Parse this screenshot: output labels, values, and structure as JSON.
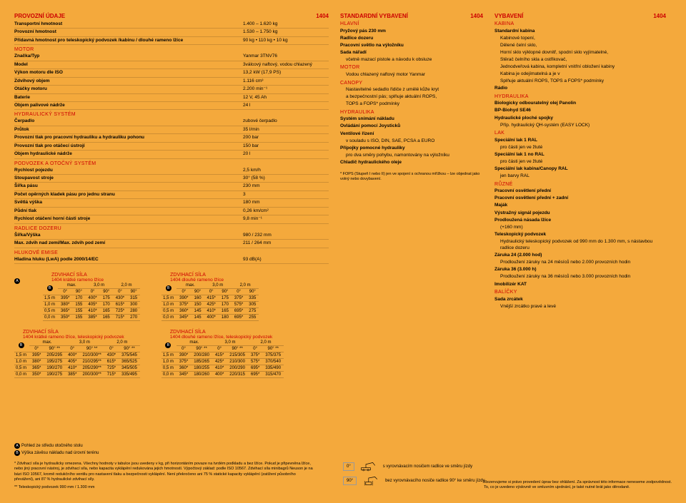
{
  "col1": {
    "header": {
      "title": "PROVOZNÍ ÚDAJE",
      "num": "1404"
    },
    "groups": [
      {
        "rows": [
          {
            "k": "Transportní hmotnost",
            "v": "1.400 – 1.620 kg",
            "b": 1
          },
          {
            "k": "Provozní hmotnost",
            "v": "1.530 – 1.750 kg",
            "b": 1
          },
          {
            "k": "Přídavná hmotnost pro teleskopický podvozek /kabinu / dlouhé rameno lžíce",
            "v": "90 kg • 110 kg • 10 kg",
            "b": 1
          }
        ]
      },
      {
        "sub": "MOTOR",
        "rows": [
          {
            "k": "Značka/Typ",
            "v": "Yanmar 3TNV76",
            "b": 1
          },
          {
            "k": "Model",
            "v": "3válcový naftový, vodou chlazený",
            "b": 1
          },
          {
            "k": "Výkon motoru dle ISO",
            "v": "13,2 kW (17,9 PS)",
            "b": 1
          },
          {
            "k": "Zdvihový objem",
            "v": "1.116 cm³",
            "b": 1
          },
          {
            "k": "Otáčky motoru",
            "v": "2.200 min⁻¹",
            "b": 1
          },
          {
            "k": "Baterie",
            "v": "12 V, 45 Ah",
            "b": 1
          },
          {
            "k": "Objem palivové nádrže",
            "v": "24 l",
            "b": 1
          }
        ]
      },
      {
        "sub": "HYDRAULICKÝ SYSTÉM",
        "rows": [
          {
            "k": "Čerpadlo",
            "v": "zubové čerpadlo",
            "b": 1
          },
          {
            "k": "Průtok",
            "v": "35 l/min",
            "b": 1
          },
          {
            "k": "Provozní tlak pro pracovní hydrauliku a hydrauliku pohonu",
            "v": "200 bar",
            "b": 1
          },
          {
            "k": "Provozní tlak pro otáčecí ústrojí",
            "v": "150 bar",
            "b": 1
          },
          {
            "k": "Objem hydraulické nádrže",
            "v": "20 l",
            "b": 1
          }
        ]
      },
      {
        "sub": "PODVOZEK A OTOČNÝ SYSTÉM",
        "rows": [
          {
            "k": "Rychlost pojezdu",
            "v": "2,5 km/h",
            "b": 1
          },
          {
            "k": "Stoupavost stroje",
            "v": "30° (58 %)",
            "b": 1
          },
          {
            "k": "Šířka pásu",
            "v": "230 mm",
            "b": 1
          },
          {
            "k": "Počet opěrných kladek pásu pro jednu stranu",
            "v": "3",
            "b": 1
          },
          {
            "k": "Světlá výška",
            "v": "180 mm",
            "b": 1
          },
          {
            "k": "Půdní tlak",
            "v": "0,26 km/cm²",
            "b": 1
          },
          {
            "k": "Rychlost otáčení horní části stroje",
            "v": "9,8 min⁻¹",
            "b": 1
          }
        ]
      },
      {
        "sub": "RADLICE DOZERU",
        "rows": [
          {
            "k": "Šířka/Výška",
            "v": "980 / 232 mm",
            "b": 1
          },
          {
            "k": "Max. zdvih nad zemí/Max. zdvih pod zemí",
            "v": "211 / 264 mm",
            "b": 1
          }
        ]
      },
      {
        "sub": "HLUKOVÉ EMISE",
        "rows": [
          {
            "k": "Hladina hluku (LwA) podle 2000/14/EC",
            "v": "93 dB(A)",
            "b": 1
          }
        ]
      }
    ],
    "tables": [
      {
        "title": "ZDVIHACÍ SÍLA",
        "sub": "1404 krátké rameno lžíce",
        "head": [
          "",
          "max.",
          "",
          "3,0 m",
          "",
          "2,0 m",
          ""
        ],
        "head2": [
          "",
          "0°",
          "90°",
          "0°",
          "90°",
          "0°",
          "90°"
        ],
        "rows": [
          [
            "1,5 m",
            "395*",
            "170",
            "400*",
            "175",
            "430*",
            "315"
          ],
          [
            "1,0 m",
            "380*",
            "155",
            "405*",
            "170",
            "615*",
            "300"
          ],
          [
            "0,5 m",
            "365*",
            "155",
            "410*",
            "165",
            "725*",
            "280"
          ],
          [
            "0,0 m",
            "350*",
            "155",
            "385*",
            "165",
            "715*",
            "270"
          ]
        ]
      },
      {
        "title": "ZDVIHACÍ SÍLA",
        "sub": "1404 dlouhé rameno lžíce",
        "head": [
          "",
          "max.",
          "",
          "3,0 m",
          "",
          "2,0 m",
          ""
        ],
        "head2": [
          "",
          "0°",
          "90°",
          "0°",
          "90°",
          "0°",
          "90°"
        ],
        "rows": [
          [
            "1,5 m",
            "390*",
            "160",
            "415*",
            "175",
            "375*",
            "335"
          ],
          [
            "1,0 m",
            "375*",
            "150",
            "425*",
            "170",
            "575*",
            "305"
          ],
          [
            "0,5 m",
            "360*",
            "145",
            "410*",
            "165",
            "695*",
            "275"
          ],
          [
            "0,0 m",
            "345*",
            "145",
            "400*",
            "180",
            "695*",
            "255"
          ]
        ]
      },
      {
        "title": "ZDVIHACÍ SÍLA",
        "sub": "1404 krátké rameno lžíce, teleskopický podvozek",
        "head": [
          "",
          "max.",
          "",
          "3,0 m",
          "",
          "2,0 m",
          ""
        ],
        "head2": [
          "",
          "0°",
          "90° **",
          "0°",
          "90° **",
          "0°",
          "90° **"
        ],
        "rows": [
          [
            "1,5 m",
            "395*",
            "205/295",
            "400*",
            "210/300**",
            "430*",
            "375/545"
          ],
          [
            "1,0 m",
            "380*",
            "195/275",
            "405*",
            "210/295**",
            "615*",
            "365/525"
          ],
          [
            "0,5 m",
            "365*",
            "190/270",
            "410*",
            "205/290**",
            "725*",
            "345/505"
          ],
          [
            "0,0 m",
            "350*",
            "190/275",
            "385*",
            "200/300**",
            "715*",
            "335/495"
          ]
        ]
      },
      {
        "title": "ZDVIHACÍ SÍLA",
        "sub": "1404 dlouhé rameno lžíce, teleskopický podvozek",
        "head": [
          "",
          "max.",
          "",
          "3,0 m",
          "",
          "2,0 m",
          ""
        ],
        "head2": [
          "",
          "0°",
          "90° **",
          "0°",
          "90° **",
          "0°",
          "90° **"
        ],
        "rows": [
          [
            "1,5 m",
            "390*",
            "200/280",
            "415*",
            "215/305",
            "375*",
            "375/375"
          ],
          [
            "1,0 m",
            "375*",
            "185/265",
            "425*",
            "210/300",
            "575*",
            "370/540"
          ],
          [
            "0,5 m",
            "360*",
            "180/255",
            "410*",
            "200/290",
            "695*",
            "335/490"
          ],
          [
            "0,0 m",
            "345*",
            "180/260",
            "400*",
            "220/315",
            "695*",
            "315/470"
          ]
        ]
      }
    ]
  },
  "col2": {
    "header": {
      "title": "STANDARDNÍ VYBAVENÍ",
      "num": "1404"
    },
    "groups": [
      {
        "sub": "HLAVNÍ",
        "items": [
          {
            "t": "Pryžový pás 230 mm",
            "b": 1
          },
          {
            "t": "Radlice dozeru",
            "b": 1
          },
          {
            "t": "Pracovní světlo na výložníku",
            "b": 1
          },
          {
            "t": "Sada nářadí",
            "b": 1
          },
          {
            "t": "včetně mazací pistole a návodu k obsluze"
          }
        ]
      },
      {
        "sub": "MOTOR",
        "items": [
          {
            "t": "Vodou chlazený naftový motor Yanmar"
          }
        ]
      },
      {
        "sub": "CANOPY",
        "items": [
          {
            "t": "Nastavitelné sedadlo řidiče z umělé kůže kryt"
          },
          {
            "t": "a bezpečnostní pás; splňuje aktuální ROPS,"
          },
          {
            "t": "TOPS a FOPS* podmínky"
          }
        ]
      },
      {
        "sub": "HYDRAULIKA",
        "items": [
          {
            "t": "Systém snímání nákladu",
            "b": 1
          },
          {
            "t": "Ovládání pomocí Joysticků",
            "b": 1
          },
          {
            "t": "Ventilové řízení",
            "b": 1
          },
          {
            "t": "v souladu s ISO, DIN, SAE, PCSA a EURO"
          },
          {
            "t": "Přípojky pomocné hydrauliky",
            "b": 1
          },
          {
            "t": "pro dva směry pohybu, namontovány na výložníku"
          },
          {
            "t": "Chladič hydraulického oleje",
            "b": 1
          }
        ]
      }
    ],
    "note": "* FOPS (Stupeň I nebo II) jen ve spojení s ochranou mřížkou – lze objednat jako volný nebo dovybavení."
  },
  "col3": {
    "header": {
      "title": "VYBAVENÍ",
      "num": "1404"
    },
    "groups": [
      {
        "sub": "KABINA",
        "items": [
          {
            "t": "Standardní kabina",
            "b": 1
          },
          {
            "t": "Kabinové topení,"
          },
          {
            "t": "Dělené čelní sklo,"
          },
          {
            "t": "Horní sklo výklopné dovnitř, spodní sklo vyjímatelné,"
          },
          {
            "t": "Stěrač čelního skla a ostřikovač,"
          },
          {
            "t": "Jednodveřová kabina, kompletní vnitřní obložení kabiny"
          },
          {
            "t": "Kabina je odejímatelná a je v"
          },
          {
            "t": "Splňuje aktuální ROPS, TOPS a FOPS* podmínky"
          },
          {
            "t": "Rádio",
            "b": 1
          }
        ]
      },
      {
        "sub": "HYDRAULIKA",
        "items": [
          {
            "t": "Biologicky odbouratelný olej Panolin",
            "b": 1
          },
          {
            "t": "BP-Biohyd SE46",
            "b": 1
          },
          {
            "t": "Hydraulické ploché spojky",
            "b": 1
          },
          {
            "t": "Příp. hydraulický QH-systém (EASY LOCK)"
          }
        ]
      },
      {
        "sub": "LAK",
        "items": [
          {
            "t": "Speciální lak 1 RAL",
            "b": 1
          },
          {
            "t": "pro části jen ve žluté"
          },
          {
            "t": "Speciální lak 1 no RAL",
            "b": 1
          },
          {
            "t": "pro části jen ve žluté"
          },
          {
            "t": "Speciální lak kabina/Canopy RAL",
            "b": 1
          },
          {
            "t": "jen barvy RAL"
          }
        ]
      },
      {
        "sub": "RŮZNÉ",
        "items": [
          {
            "t": "Pracovní osvětlení přední",
            "b": 1
          },
          {
            "t": "Pracovní osvětlení přední + zadní",
            "b": 1
          },
          {
            "t": "Maják",
            "b": 1
          },
          {
            "t": "Výstražný signál pojezdu",
            "b": 1
          },
          {
            "t": "Prodloužená násada lžíce",
            "b": 1
          },
          {
            "t": "(+160 mm)"
          },
          {
            "t": "Teleskopický podvozek",
            "b": 1
          },
          {
            "t": "Hydraulický teleskopický podvozek od 990 mm do 1.300 mm, s nástavbou radlice dozeru"
          },
          {
            "t": "Záruka 24 (2.000 hod)",
            "b": 1
          },
          {
            "t": "Prodloužení záruky na 24 měsíců nebo 2.000 provozních hodin"
          },
          {
            "t": "Záruka 36 (3.000 h)",
            "b": 1
          },
          {
            "t": "Prodloužení záruky na 36 měsíců nebo 3.000 provozních hodin"
          },
          {
            "t": "Imobilizér KAT",
            "b": 1
          }
        ]
      },
      {
        "sub": "BALÍČKY",
        "items": [
          {
            "t": "Sada zrcátek",
            "b": 1
          },
          {
            "t": "Vnější zrcátko pravé a levé"
          }
        ]
      }
    ]
  },
  "footnotes": {
    "a": "Pohled ze středu otočného stolu",
    "b": "Výška závěsu nákladu nad úrovní terénu",
    "star": "* Zdvihací síla je hydraulicky omezena. Všechny hodnoty v tabulce jsou uvedeny v kg, při horizontáním povaze na tvrdém podkladu a bez lžíce. Pokud je připevněna lžíce, nebo jiný pracovní nástroj, je zdvihací síla, nebo kapacita vyklápění redukována jejich hmotností. Výpočtový základ: podle ISO 10567. Zdvihací síla minibagrů Neuson je na bázi ISO 10567, kromě redukčního ventilu pro nastavení tlaku a bezpečnosti vyklápění. Není překročeno ani 75 % statické kapacity vyklápění (zatížení působního převážení), ani 87 % hydraulické zdvihací síly.",
    "dbl": "** Teleskopický podvozek 990 mm / 1.300 mm",
    "diag0": "s vyrovnávacím nosičem radlice ve směru jízdy",
    "diag90": "bez vyrovnávacího nosiče radlice 90° ke směru jízdy",
    "right1": "Rezervujeme si právo provedení úprav bez ohlášení. Za správnost této informace neneseme zodpovědnost.",
    "right2": "To, co je uvedeno výslovně ve smluvním ujednání, je také nutné brát jako děrodaně."
  }
}
